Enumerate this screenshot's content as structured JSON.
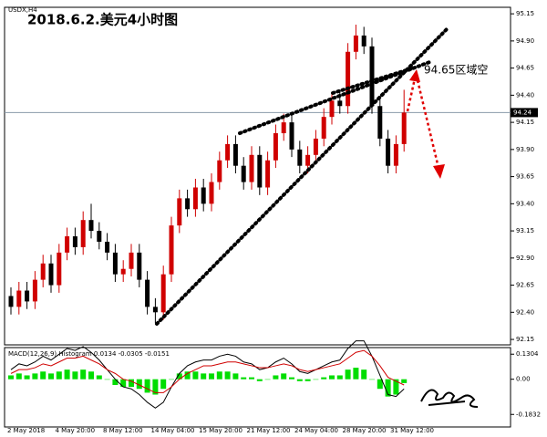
{
  "chart_data": {
    "type": "candlestick",
    "title": "2018.6.2.美元4小时图",
    "subtitle": "USDX,H4",
    "annotation": "94.65区域空",
    "up_color": "#d00000",
    "down_color": "#000000",
    "open": [
      92.55,
      92.45,
      92.6,
      92.5,
      92.7,
      92.85,
      92.65,
      92.95,
      93.1,
      93.0,
      93.25,
      93.15,
      93.05,
      92.95,
      92.75,
      92.8,
      92.95,
      92.7,
      92.45,
      92.4,
      92.75,
      93.2,
      93.45,
      93.35,
      93.55,
      93.4,
      93.6,
      93.8,
      93.95,
      93.75,
      93.6,
      93.85,
      93.55,
      93.8,
      94.05,
      94.15,
      93.9,
      93.75,
      93.85,
      94.0,
      94.2,
      94.35,
      94.3,
      94.8,
      94.95,
      94.85,
      94.3,
      94.0,
      93.75,
      93.95
    ],
    "high": [
      92.63,
      92.68,
      92.68,
      92.78,
      92.93,
      92.93,
      93.03,
      93.18,
      93.18,
      93.33,
      93.4,
      93.23,
      93.13,
      93.03,
      92.88,
      93.03,
      93.03,
      92.78,
      92.53,
      92.83,
      93.28,
      93.53,
      93.53,
      93.63,
      93.63,
      93.68,
      93.88,
      94.03,
      94.03,
      93.83,
      93.93,
      93.93,
      93.88,
      94.13,
      94.23,
      94.23,
      93.98,
      93.93,
      94.08,
      94.28,
      94.43,
      94.43,
      94.88,
      95.05,
      95.03,
      94.93,
      94.38,
      94.08,
      94.03,
      94.45
    ],
    "low": [
      92.38,
      92.38,
      92.43,
      92.43,
      92.63,
      92.58,
      92.58,
      92.88,
      92.93,
      92.93,
      93.08,
      92.98,
      92.88,
      92.68,
      92.68,
      92.73,
      92.63,
      92.38,
      92.3,
      92.33,
      92.68,
      93.13,
      93.28,
      93.28,
      93.33,
      93.33,
      93.53,
      93.73,
      93.68,
      93.53,
      93.53,
      93.48,
      93.48,
      93.73,
      93.98,
      93.83,
      93.68,
      93.68,
      93.78,
      93.93,
      94.13,
      94.23,
      94.23,
      94.73,
      94.78,
      94.23,
      93.93,
      93.68,
      93.68,
      93.88
    ],
    "close": [
      92.45,
      92.6,
      92.5,
      92.7,
      92.85,
      92.65,
      92.95,
      93.1,
      93.0,
      93.25,
      93.15,
      93.05,
      92.95,
      92.75,
      92.8,
      92.95,
      92.7,
      92.45,
      92.4,
      92.75,
      93.2,
      93.45,
      93.35,
      93.55,
      93.4,
      93.6,
      93.8,
      93.95,
      93.75,
      93.6,
      93.85,
      93.55,
      93.8,
      94.05,
      94.15,
      93.9,
      93.75,
      93.85,
      94.0,
      94.2,
      94.35,
      94.3,
      94.8,
      94.95,
      94.85,
      94.3,
      94.0,
      93.75,
      93.95,
      94.24
    ],
    "current_price": {
      "value": 94.24,
      "label": "94.24"
    },
    "ylim": [
      92.1,
      95.21
    ],
    "yticks": [
      95.15,
      {
        "value": 94.9,
        "label": "94.90"
      },
      94.65,
      {
        "value": 94.4,
        "label": "94.40"
      },
      94.15,
      {
        "value": 93.9,
        "label": "93.90"
      },
      93.65,
      {
        "value": 93.4,
        "label": "93.40"
      },
      93.15,
      {
        "value": 92.9,
        "label": "92.90"
      },
      92.65,
      {
        "value": 92.4,
        "label": "92.40"
      },
      92.15
    ],
    "x_labels": [
      "2 May 2018",
      "4 May 20:00",
      "8 May 12:00",
      "14 May 04:00",
      "15 May 20:00",
      "21 May 12:00",
      "24 May 04:00",
      "28 May 20:00",
      "31 May 12:00"
    ],
    "indicator": {
      "label": "MACD(12,26,9) Histogram 0.0134 -0.0305 -0.0151",
      "histogram_color": "#00dd00",
      "macd_color": "#000000",
      "signal_color": "#d00000",
      "histogram": [
        0.02,
        0.03,
        0.02,
        0.03,
        0.04,
        0.03,
        0.04,
        0.05,
        0.04,
        0.05,
        0.04,
        0.02,
        0.0,
        -0.03,
        -0.04,
        -0.04,
        -0.05,
        -0.07,
        -0.08,
        -0.05,
        0.0,
        0.03,
        0.04,
        0.04,
        0.03,
        0.03,
        0.04,
        0.04,
        0.03,
        0.01,
        0.01,
        -0.01,
        0.0,
        0.02,
        0.03,
        0.01,
        -0.01,
        -0.01,
        0.0,
        0.01,
        0.02,
        0.02,
        0.05,
        0.06,
        0.05,
        0.0,
        -0.05,
        -0.09,
        -0.08,
        -0.02
      ],
      "macd": [
        0.05,
        0.08,
        0.07,
        0.09,
        0.12,
        0.1,
        0.13,
        0.16,
        0.15,
        0.17,
        0.14,
        0.1,
        0.05,
        0.0,
        -0.04,
        -0.05,
        -0.08,
        -0.12,
        -0.15,
        -0.12,
        -0.04,
        0.03,
        0.07,
        0.09,
        0.1,
        0.1,
        0.12,
        0.13,
        0.12,
        0.09,
        0.08,
        0.05,
        0.06,
        0.09,
        0.11,
        0.08,
        0.04,
        0.03,
        0.05,
        0.07,
        0.09,
        0.1,
        0.16,
        0.2,
        0.2,
        0.12,
        0.02,
        -0.08,
        -0.09,
        -0.05
      ],
      "signal": [
        0.03,
        0.05,
        0.05,
        0.06,
        0.08,
        0.07,
        0.09,
        0.11,
        0.11,
        0.12,
        0.1,
        0.08,
        0.05,
        0.03,
        0.0,
        -0.01,
        -0.03,
        -0.05,
        -0.07,
        -0.07,
        -0.04,
        0.0,
        0.03,
        0.05,
        0.07,
        0.07,
        0.08,
        0.09,
        0.09,
        0.08,
        0.07,
        0.06,
        0.06,
        0.07,
        0.08,
        0.07,
        0.05,
        0.04,
        0.05,
        0.06,
        0.07,
        0.08,
        0.11,
        0.14,
        0.15,
        0.12,
        0.07,
        0.01,
        -0.01,
        -0.03
      ],
      "ylim": [
        -0.22,
        0.16
      ],
      "yticks": [
        0.1304,
        {
          "value": 0,
          "label": "0.00"
        },
        -0.1832
      ]
    }
  }
}
